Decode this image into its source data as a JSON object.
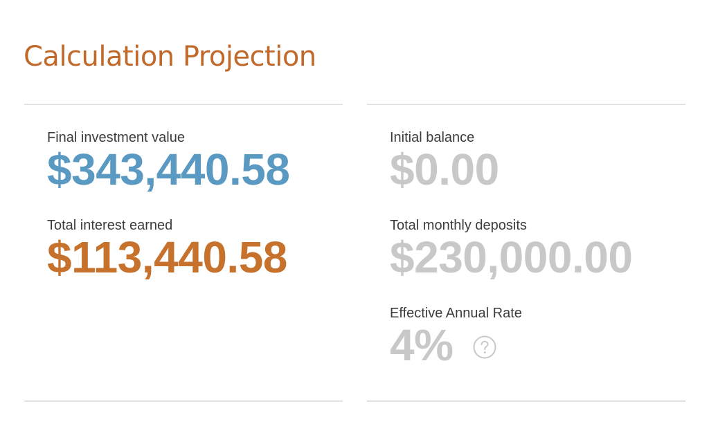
{
  "page": {
    "title": "Calculation Projection"
  },
  "summary": {
    "final_investment": {
      "label": "Final investment value",
      "value": "$343,440.58"
    },
    "total_interest": {
      "label": "Total interest earned",
      "value": "$113,440.58"
    }
  },
  "details": {
    "initial_balance": {
      "label": "Initial balance",
      "value": "$0.00"
    },
    "monthly_deposits": {
      "label": "Total monthly deposits",
      "value": "$230,000.00"
    },
    "effective_rate": {
      "label": "Effective Annual Rate",
      "value": "4%",
      "help_icon": "question-circle-icon"
    }
  },
  "colors": {
    "title": "#c0692a",
    "final_value": "#5a9ac2",
    "interest_value": "#c7722c",
    "muted_value": "#c8c8c8",
    "label": "#3c3c3c",
    "divider": "#e2e2e2"
  }
}
